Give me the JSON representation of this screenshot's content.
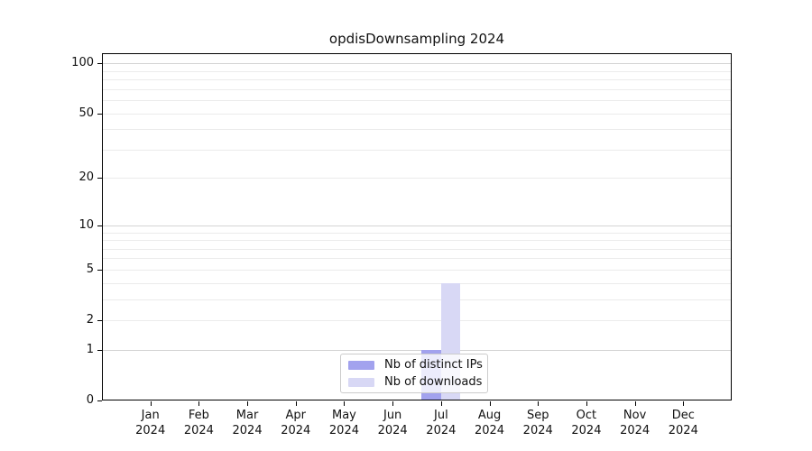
{
  "header": {
    "title": "opdisDownsampling 2024"
  },
  "chart_data": {
    "type": "bar",
    "title": "opdisDownsampling 2024",
    "categories": [
      "Jan",
      "Feb",
      "Mar",
      "Apr",
      "May",
      "Jun",
      "Jul",
      "Aug",
      "Sep",
      "Oct",
      "Nov",
      "Dec"
    ],
    "category_year": "2024",
    "series": [
      {
        "name": "Nb of distinct IPs",
        "color": "#a2a2ee",
        "values": [
          0,
          0,
          0,
          0,
          0,
          0,
          1,
          0,
          0,
          0,
          0,
          0
        ]
      },
      {
        "name": "Nb of downloads",
        "color": "#d8d8f5",
        "values": [
          0,
          0,
          0,
          0,
          0,
          0,
          4,
          0,
          0,
          0,
          0,
          0
        ]
      }
    ],
    "yscale": "log1p",
    "ylim": [
      0,
      115
    ],
    "yticks": [
      0,
      1,
      2,
      5,
      10,
      20,
      50,
      100
    ],
    "yticks_minor": [
      2,
      3,
      4,
      5,
      6,
      7,
      8,
      9,
      20,
      30,
      40,
      50,
      60,
      70,
      80,
      90
    ],
    "ymajor_gridlines": [
      1,
      10,
      100
    ],
    "xlabel": "",
    "ylabel": "",
    "grid": "horizontal",
    "legend_position": "lower center",
    "bar_layout": "dodged"
  },
  "legend": {
    "items": [
      {
        "label": "Nb of distinct IPs",
        "color": "#a2a2ee"
      },
      {
        "label": "Nb of downloads",
        "color": "#d8d8f5"
      }
    ]
  },
  "colors": {
    "background": "#ffffff",
    "axis": "#000000",
    "grid_minor": "#ebebeb",
    "grid_major": "#d4d4d4",
    "legend_border": "#cccccc",
    "text": "#111111"
  }
}
